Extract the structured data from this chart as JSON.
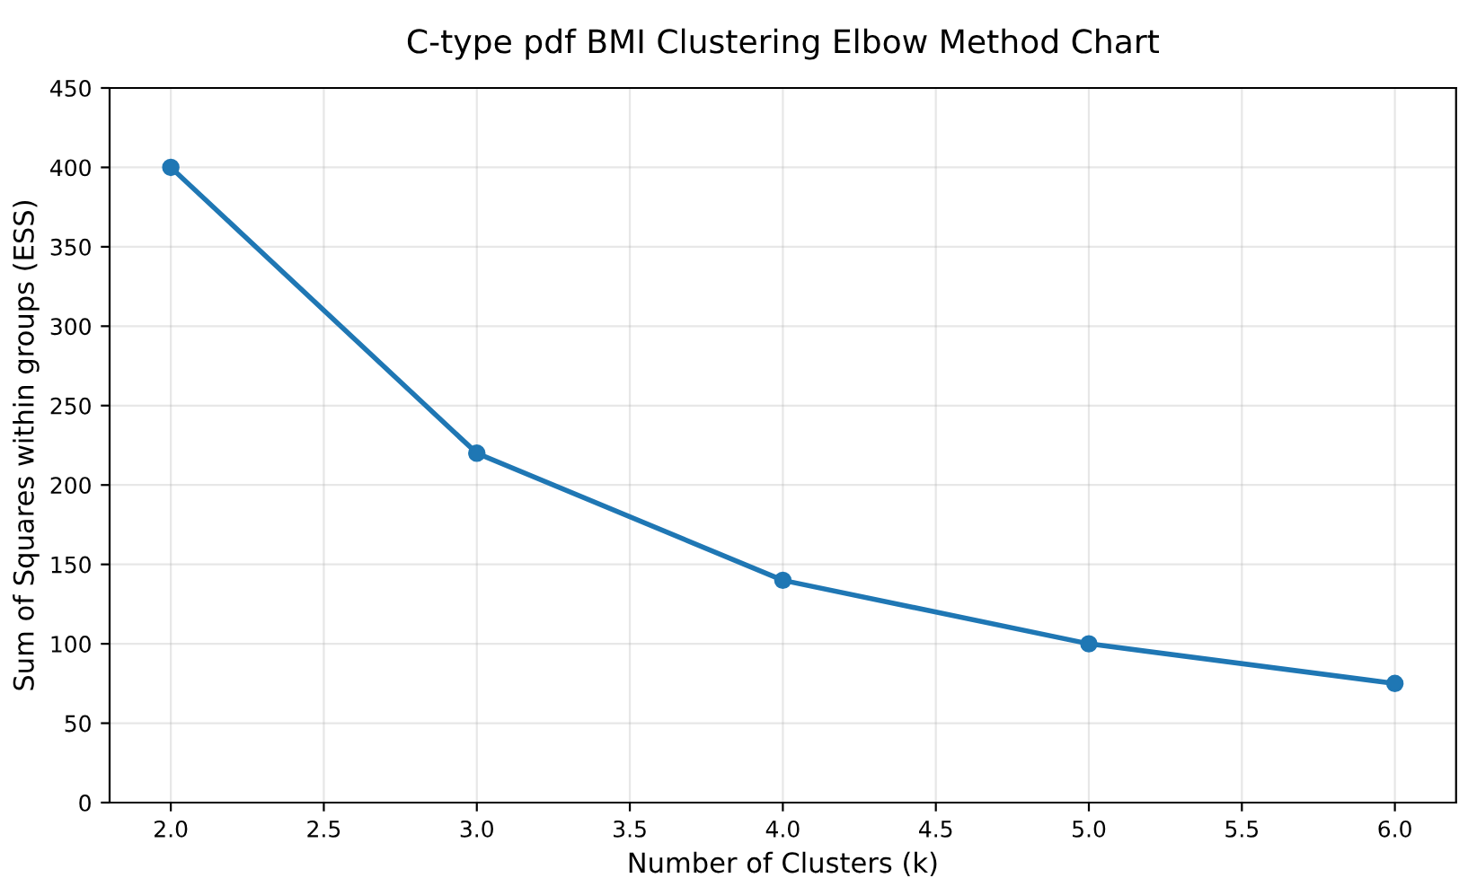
{
  "chart_data": {
    "type": "line",
    "title": "C-type pdf BMI Clustering Elbow Method Chart",
    "xlabel": "Number of Clusters (k)",
    "ylabel": "Sum of Squares within groups (ESS)",
    "x": [
      2,
      3,
      4,
      5,
      6
    ],
    "series": [
      {
        "color": "#1f77b4",
        "values": [
          400,
          220,
          140,
          100,
          75
        ]
      }
    ],
    "xlim": [
      1.8,
      6.2
    ],
    "xticks": [
      {
        "value": 2,
        "label": "2.0"
      },
      {
        "value": 2.5,
        "label": "2.5"
      },
      {
        "value": 3,
        "label": "3.0"
      },
      {
        "value": 3.5,
        "label": "3.5"
      },
      {
        "value": 4,
        "label": "4.0"
      },
      {
        "value": 4.5,
        "label": "4.5"
      },
      {
        "value": 5,
        "label": "5.0"
      },
      {
        "value": 5.5,
        "label": "5.5"
      },
      {
        "value": 6,
        "label": "6.0"
      }
    ],
    "ylim": [
      0,
      450
    ],
    "yticks": [
      0,
      50,
      100,
      150,
      200,
      250,
      300,
      350,
      400,
      450
    ],
    "grid": true,
    "marker": "circle",
    "line_style": "solid"
  }
}
